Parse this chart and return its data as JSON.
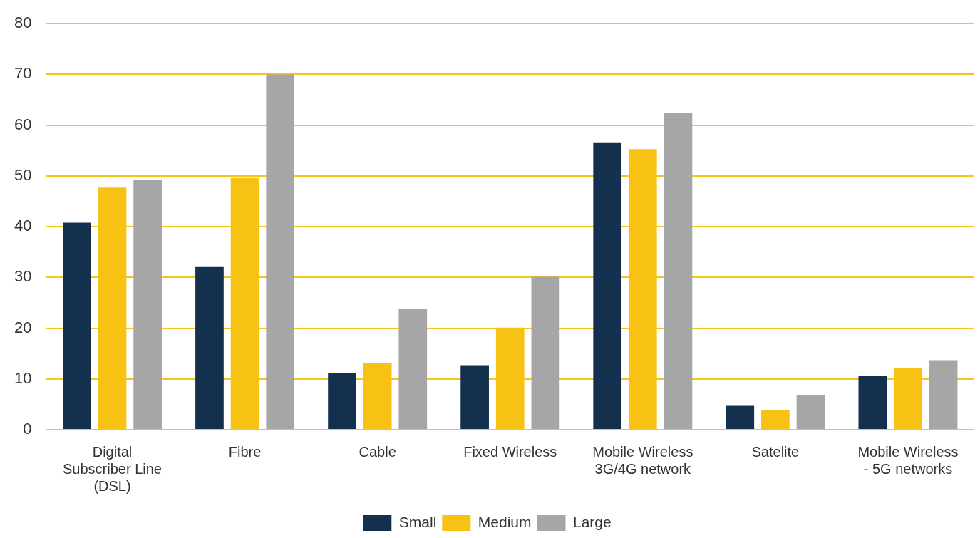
{
  "chart_data": {
    "type": "bar",
    "categories": [
      "Digital Subscriber Line (DSL)",
      "Fibre",
      "Cable",
      "Fixed Wireless",
      "Mobile Wireless 3G/4G network",
      "Satelite",
      "Mobile Wireless - 5G networks"
    ],
    "series": [
      {
        "name": "Small",
        "color": "#14304f",
        "values": [
          40.8,
          32.2,
          11.1,
          12.7,
          56.6,
          4.7,
          10.6
        ]
      },
      {
        "name": "Medium",
        "color": "#f8c215",
        "values": [
          47.7,
          49.6,
          13.1,
          20.1,
          55.3,
          3.8,
          12.1
        ]
      },
      {
        "name": "Large",
        "color": "#a6a6a7",
        "values": [
          49.2,
          70,
          23.8,
          30.1,
          62.4,
          6.8,
          13.7
        ]
      }
    ],
    "ylim": [
      0,
      80
    ],
    "yticks": [
      0,
      10,
      20,
      30,
      40,
      50,
      60,
      70,
      80
    ],
    "grid": "y",
    "legend": "bottom"
  }
}
